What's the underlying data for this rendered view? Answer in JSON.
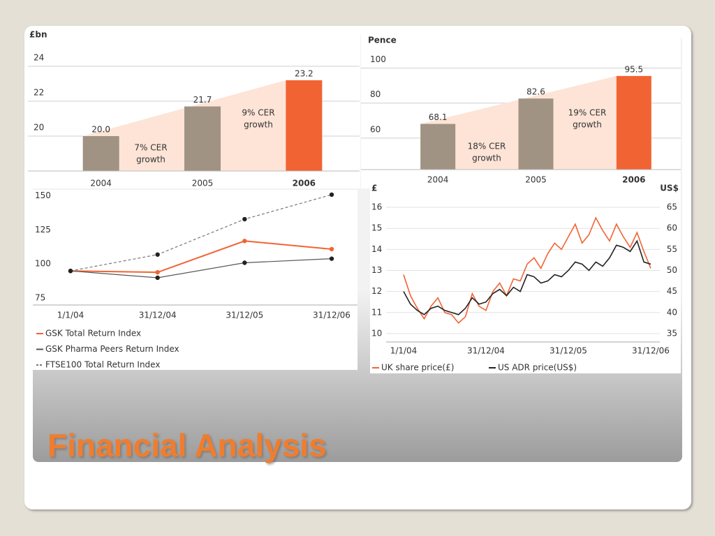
{
  "title": "Financial Analysis",
  "chart_data": [
    {
      "type": "bar",
      "y_label": "£bn",
      "categories": [
        "2004",
        "2005",
        "2006"
      ],
      "values": [
        20.0,
        21.7,
        23.2
      ],
      "value_labels": [
        "20.0",
        "21.7",
        "23.2"
      ],
      "colors": [
        "#a09383",
        "#a09383",
        "#f26334"
      ],
      "ylim": [
        18,
        24.6
      ],
      "yticks": [
        20,
        22,
        24
      ],
      "grid": true,
      "annotations": [
        [
          "7% CER",
          "growth"
        ],
        [
          "9% CER",
          "growth"
        ]
      ]
    },
    {
      "type": "bar",
      "y_label": "Pence",
      "categories": [
        "2004",
        "2005",
        "2006"
      ],
      "values": [
        68.1,
        82.6,
        95.5
      ],
      "colors": [
        "#a09383",
        "#a09383",
        "#f26334"
      ],
      "ylim": [
        42,
        107
      ],
      "yticks": [
        60,
        80,
        100
      ],
      "grid": true,
      "annotations": [
        [
          "18% CER",
          "growth"
        ],
        [
          "19% CER",
          "growth"
        ]
      ]
    },
    {
      "type": "line",
      "categories": [
        "1/1/04",
        "31/12/04",
        "31/12/05",
        "31/12/06"
      ],
      "ylim": [
        75,
        158
      ],
      "yticks": [
        75,
        100,
        125,
        150
      ],
      "grid": false,
      "series": [
        {
          "name": "GSK Total Return Index",
          "color": "#f26334",
          "marker_color": "#f26334",
          "dashed": false,
          "values": [
            100,
            99,
            122,
            116
          ]
        },
        {
          "name": "GSK Pharma Peers Return Index",
          "color": "#555555",
          "marker_color": "#222222",
          "dashed": false,
          "values": [
            100,
            95,
            106,
            109
          ]
        },
        {
          "name": "FTSE100 Total Return Index",
          "color": "#777777",
          "marker_color": "#222222",
          "dashed": true,
          "values": [
            100,
            112,
            138,
            156
          ]
        }
      ]
    },
    {
      "type": "line",
      "y_label": "£",
      "y2_label": "US$",
      "categories": [
        "1/1/04",
        null,
        null,
        null,
        null,
        null,
        null,
        null,
        null,
        null,
        null,
        null,
        "31/12/04",
        null,
        null,
        null,
        null,
        null,
        null,
        null,
        null,
        null,
        null,
        null,
        "31/12/05",
        null,
        null,
        null,
        null,
        null,
        null,
        null,
        null,
        null,
        null,
        null,
        "31/12/06"
      ],
      "ylim": [
        9.6,
        16.4
      ],
      "yticks": [
        10,
        11,
        12,
        13,
        14,
        15,
        16
      ],
      "y2lim": [
        33,
        67
      ],
      "y2ticks": [
        35,
        40,
        45,
        50,
        55,
        60,
        65
      ],
      "grid": true,
      "series": [
        {
          "name": "UK share price(£)",
          "color": "#f26334",
          "values": [
            12.8,
            11.8,
            11.2,
            10.7,
            11.3,
            11.7,
            11.0,
            10.9,
            10.5,
            10.8,
            11.9,
            11.3,
            11.1,
            12.0,
            12.4,
            11.8,
            12.6,
            12.5,
            13.3,
            13.6,
            13.1,
            13.8,
            14.3,
            14.0,
            14.6,
            15.2,
            14.3,
            14.7,
            15.5,
            14.9,
            14.4,
            15.2,
            14.6,
            14.1,
            14.8,
            13.9,
            13.1
          ]
        },
        {
          "name": "US ADR price(US$)",
          "color": "#222222",
          "axis": "y2",
          "values": [
            45,
            42,
            40.5,
            39.5,
            41,
            41.5,
            40.5,
            40,
            39.5,
            41,
            43.5,
            42,
            42.5,
            44.5,
            45.5,
            44,
            46,
            45,
            49,
            48.5,
            47,
            47.5,
            49,
            48.5,
            50,
            52,
            51.5,
            50,
            52,
            51,
            53,
            56,
            55.5,
            54.5,
            57,
            52,
            51.5
          ]
        }
      ]
    }
  ]
}
